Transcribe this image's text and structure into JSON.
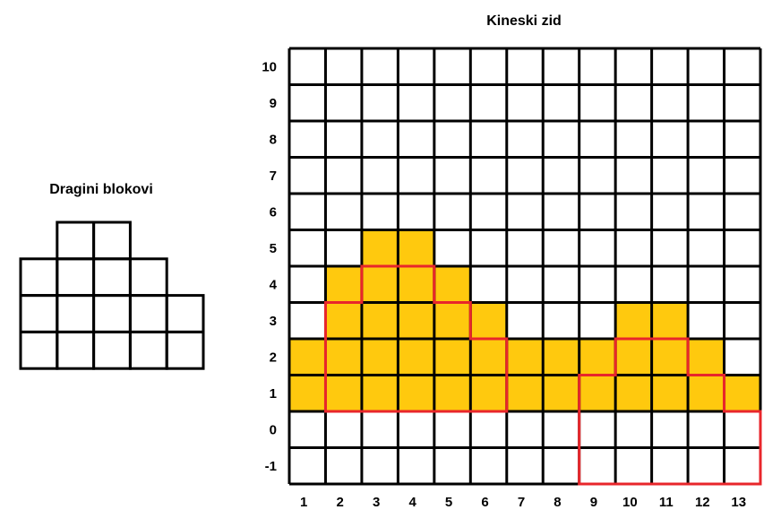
{
  "blocks_title": "Dragini blokovi",
  "wall_title": "Kineski zid",
  "colors": {
    "fill": "#FFC90E",
    "grid": "#000000",
    "outline": "#E8262B",
    "background": "#FFFFFF"
  },
  "blocks_rows": [
    {
      "from": 2,
      "to": 3
    },
    {
      "from": 1,
      "to": 4
    },
    {
      "from": 1,
      "to": 5
    },
    {
      "from": 1,
      "to": 5
    }
  ],
  "wall": {
    "x_labels": [
      "1",
      "2",
      "3",
      "4",
      "5",
      "6",
      "7",
      "8",
      "9",
      "10",
      "11",
      "12",
      "13"
    ],
    "y_labels": [
      "10",
      "9",
      "8",
      "7",
      "6",
      "5",
      "4",
      "3",
      "2",
      "1",
      "0",
      "-1"
    ],
    "column_tops": [
      2,
      4,
      5,
      5,
      4,
      3,
      2,
      2,
      2,
      3,
      3,
      2,
      1
    ],
    "fill_bottom": 1,
    "outlines": [
      {
        "name": "left-shape",
        "points": [
          [
            2,
            1
          ],
          [
            2,
            4
          ],
          [
            3,
            4
          ],
          [
            3,
            5
          ],
          [
            5,
            5
          ],
          [
            5,
            4
          ],
          [
            6,
            4
          ],
          [
            6,
            3
          ],
          [
            7,
            3
          ],
          [
            7,
            1
          ]
        ]
      },
      {
        "name": "right-shape",
        "points": [
          [
            9,
            -1
          ],
          [
            9,
            2
          ],
          [
            10,
            2
          ],
          [
            10,
            3
          ],
          [
            12,
            3
          ],
          [
            12,
            2
          ],
          [
            13,
            2
          ],
          [
            13,
            1
          ],
          [
            14,
            1
          ],
          [
            14,
            -1
          ]
        ]
      }
    ]
  }
}
